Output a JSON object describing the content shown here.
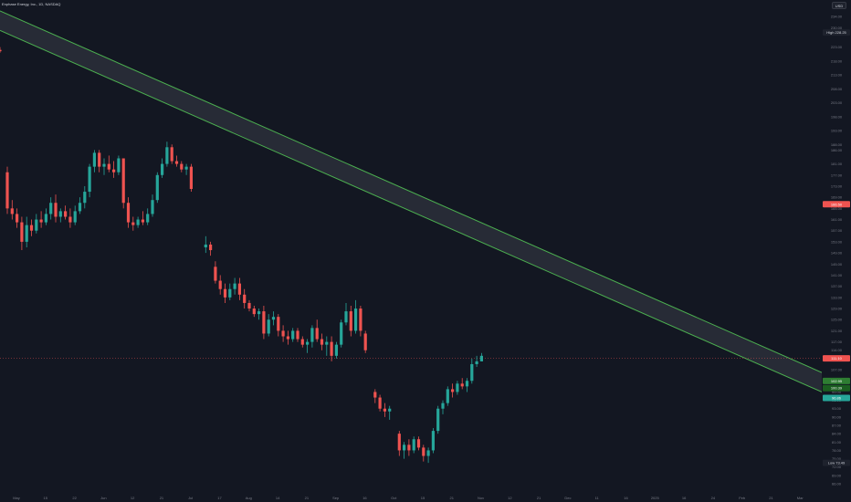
{
  "header": {
    "symbol_title": "Enphase Energy, Inc., 1D, NASDAQ",
    "currency_label": "USD"
  },
  "colors": {
    "background": "#131722",
    "up_candle": "#26a69a",
    "down_candle": "#ef5350",
    "channel_line": "#4caf50",
    "channel_fill": "#2a2e39",
    "price_line": "#ef5350",
    "axis_text": "#787b86"
  },
  "price_axis": {
    "ticks": [
      "234.00",
      "230.00",
      "223.00",
      "218.00",
      "213.00",
      "208.00",
      "203.00",
      "198.00",
      "193.00",
      "188.00",
      "186.00",
      "181.00",
      "177.00",
      "173.00",
      "169.00",
      "165.00",
      "161.00",
      "157.00",
      "153.00",
      "149.00",
      "145.00",
      "141.00",
      "137.00",
      "133.00",
      "129.00",
      "125.00",
      "121.00",
      "117.00",
      "114.00",
      "111.00",
      "107.00",
      "103.00",
      "99.00",
      "96.00",
      "93.00",
      "90.00",
      "87.00",
      "84.00",
      "81.00",
      "78.00",
      "75.00",
      "72.00",
      "69.00",
      "66.00"
    ],
    "high_label": "High",
    "high_value": "228.25",
    "low_label": "Low",
    "low_value": "73.49",
    "current_price": "111.10",
    "channel_top_value": "102.95",
    "channel_bottom_value": "100.39",
    "marker_value": "166.50",
    "marker2_value": "96.86"
  },
  "time_axis": {
    "labels": [
      "May",
      "15",
      "22",
      "Jun",
      "12",
      "21",
      "Jul",
      "17",
      "Aug",
      "14",
      "21",
      "Sep",
      "16",
      "Oct",
      "15",
      "21",
      "Nov",
      "12",
      "21",
      "Dec",
      "11",
      "16",
      "2025",
      "16",
      "24",
      "Feb",
      "21",
      "Mar"
    ]
  },
  "chart_data": {
    "type": "candlestick",
    "title": "Enphase Energy, Inc., 1D, NASDAQ",
    "ylim": [
      66,
      236
    ],
    "x_axis_labels": [
      "May",
      "15",
      "22",
      "Jun",
      "12",
      "21",
      "Jul",
      "17",
      "Aug",
      "14",
      "21",
      "Sep",
      "16",
      "Oct",
      "15",
      "21",
      "Nov",
      "12",
      "21",
      "Dec",
      "11",
      "16",
      "2025",
      "16",
      "24",
      "Feb",
      "21",
      "Mar"
    ],
    "channel": {
      "upper_line": {
        "start": 236,
        "end": 106
      },
      "lower_line": {
        "start": 229,
        "end": 99
      }
    },
    "last_price": 111.1,
    "high": 228.25,
    "low": 73.49,
    "candles": [
      {
        "o": 222,
        "h": 223,
        "l": 221,
        "c": 221.5
      },
      {
        "o": 178,
        "h": 180,
        "l": 163,
        "c": 165
      },
      {
        "o": 165,
        "h": 168,
        "l": 161,
        "c": 163
      },
      {
        "o": 163,
        "h": 165,
        "l": 158,
        "c": 160
      },
      {
        "o": 160,
        "h": 162,
        "l": 150,
        "c": 153
      },
      {
        "o": 153,
        "h": 162,
        "l": 151,
        "c": 159
      },
      {
        "o": 159,
        "h": 161,
        "l": 155,
        "c": 157
      },
      {
        "o": 157,
        "h": 163,
        "l": 156,
        "c": 161
      },
      {
        "o": 161,
        "h": 164,
        "l": 158,
        "c": 160
      },
      {
        "o": 160,
        "h": 165,
        "l": 159,
        "c": 163
      },
      {
        "o": 163,
        "h": 169,
        "l": 161,
        "c": 167
      },
      {
        "o": 167,
        "h": 170,
        "l": 160,
        "c": 162
      },
      {
        "o": 162,
        "h": 165,
        "l": 160,
        "c": 164
      },
      {
        "o": 164,
        "h": 166,
        "l": 161,
        "c": 162
      },
      {
        "o": 162,
        "h": 165,
        "l": 158,
        "c": 160
      },
      {
        "o": 160,
        "h": 166,
        "l": 159,
        "c": 164
      },
      {
        "o": 164,
        "h": 169,
        "l": 163,
        "c": 167
      },
      {
        "o": 167,
        "h": 173,
        "l": 165,
        "c": 171
      },
      {
        "o": 171,
        "h": 181,
        "l": 169,
        "c": 180
      },
      {
        "o": 180,
        "h": 186,
        "l": 178,
        "c": 185
      },
      {
        "o": 185,
        "h": 186,
        "l": 178,
        "c": 180
      },
      {
        "o": 180,
        "h": 183,
        "l": 177,
        "c": 181
      },
      {
        "o": 181,
        "h": 184,
        "l": 178,
        "c": 179
      },
      {
        "o": 179,
        "h": 182,
        "l": 176,
        "c": 178
      },
      {
        "o": 178,
        "h": 184,
        "l": 177,
        "c": 183
      },
      {
        "o": 183,
        "h": 183,
        "l": 165,
        "c": 167
      },
      {
        "o": 167,
        "h": 169,
        "l": 158,
        "c": 160
      },
      {
        "o": 160,
        "h": 162,
        "l": 157,
        "c": 159
      },
      {
        "o": 159,
        "h": 162,
        "l": 158,
        "c": 161
      },
      {
        "o": 161,
        "h": 164,
        "l": 159,
        "c": 160
      },
      {
        "o": 160,
        "h": 165,
        "l": 159,
        "c": 163
      },
      {
        "o": 163,
        "h": 170,
        "l": 162,
        "c": 168
      },
      {
        "o": 168,
        "h": 178,
        "l": 167,
        "c": 177
      },
      {
        "o": 177,
        "h": 183,
        "l": 176,
        "c": 181
      },
      {
        "o": 181,
        "h": 189,
        "l": 180,
        "c": 187
      },
      {
        "o": 187,
        "h": 188,
        "l": 181,
        "c": 182
      },
      {
        "o": 182,
        "h": 184,
        "l": 180,
        "c": 181
      },
      {
        "o": 181,
        "h": 182,
        "l": 178,
        "c": 179
      },
      {
        "o": 179,
        "h": 181,
        "l": 177,
        "c": 180
      },
      {
        "o": 180,
        "h": 181,
        "l": 171,
        "c": 172
      },
      {
        "o": 151,
        "h": 155,
        "l": 149,
        "c": 152
      },
      {
        "o": 152,
        "h": 153,
        "l": 148,
        "c": 150
      },
      {
        "o": 144,
        "h": 146,
        "l": 138,
        "c": 139
      },
      {
        "o": 139,
        "h": 141,
        "l": 134,
        "c": 136
      },
      {
        "o": 136,
        "h": 138,
        "l": 131,
        "c": 133
      },
      {
        "o": 133,
        "h": 138,
        "l": 132,
        "c": 136
      },
      {
        "o": 136,
        "h": 140,
        "l": 134,
        "c": 138
      },
      {
        "o": 138,
        "h": 140,
        "l": 132,
        "c": 134
      },
      {
        "o": 134,
        "h": 136,
        "l": 129,
        "c": 131
      },
      {
        "o": 131,
        "h": 132,
        "l": 128,
        "c": 129
      },
      {
        "o": 129,
        "h": 130,
        "l": 126,
        "c": 127
      },
      {
        "o": 127,
        "h": 129,
        "l": 125,
        "c": 128
      },
      {
        "o": 128,
        "h": 130,
        "l": 118,
        "c": 120
      },
      {
        "o": 120,
        "h": 127,
        "l": 119,
        "c": 125
      },
      {
        "o": 125,
        "h": 128,
        "l": 123,
        "c": 126
      },
      {
        "o": 126,
        "h": 127,
        "l": 119,
        "c": 121
      },
      {
        "o": 121,
        "h": 123,
        "l": 117,
        "c": 119
      },
      {
        "o": 119,
        "h": 121,
        "l": 116,
        "c": 118
      },
      {
        "o": 118,
        "h": 122,
        "l": 117,
        "c": 121
      },
      {
        "o": 121,
        "h": 122,
        "l": 117,
        "c": 118
      },
      {
        "o": 118,
        "h": 119,
        "l": 115,
        "c": 116
      },
      {
        "o": 116,
        "h": 118,
        "l": 113,
        "c": 117
      },
      {
        "o": 117,
        "h": 123,
        "l": 115,
        "c": 122
      },
      {
        "o": 122,
        "h": 125,
        "l": 117,
        "c": 118
      },
      {
        "o": 118,
        "h": 120,
        "l": 114,
        "c": 116
      },
      {
        "o": 116,
        "h": 119,
        "l": 112,
        "c": 117
      },
      {
        "o": 117,
        "h": 119,
        "l": 110,
        "c": 112
      },
      {
        "o": 112,
        "h": 117,
        "l": 111,
        "c": 116
      },
      {
        "o": 116,
        "h": 125,
        "l": 115,
        "c": 124
      },
      {
        "o": 124,
        "h": 131,
        "l": 123,
        "c": 128
      },
      {
        "o": 128,
        "h": 130,
        "l": 119,
        "c": 121
      },
      {
        "o": 121,
        "h": 132,
        "l": 120,
        "c": 129
      },
      {
        "o": 129,
        "h": 130,
        "l": 119,
        "c": 121
      },
      {
        "o": 120,
        "h": 121,
        "l": 113,
        "c": 114
      },
      {
        "o": 99,
        "h": 100,
        "l": 95,
        "c": 97
      },
      {
        "o": 97,
        "h": 98,
        "l": 92,
        "c": 93
      },
      {
        "o": 93,
        "h": 95,
        "l": 90,
        "c": 92
      },
      {
        "o": 92,
        "h": 94,
        "l": 89,
        "c": 93
      },
      {
        "o": 84,
        "h": 85,
        "l": 76,
        "c": 78
      },
      {
        "o": 78,
        "h": 81,
        "l": 75,
        "c": 80
      },
      {
        "o": 80,
        "h": 82,
        "l": 76,
        "c": 78
      },
      {
        "o": 78,
        "h": 83,
        "l": 77,
        "c": 82
      },
      {
        "o": 82,
        "h": 83,
        "l": 78,
        "c": 79
      },
      {
        "o": 79,
        "h": 80,
        "l": 74,
        "c": 76
      },
      {
        "o": 76,
        "h": 79,
        "l": 73.5,
        "c": 78
      },
      {
        "o": 78,
        "h": 86,
        "l": 77,
        "c": 85
      },
      {
        "o": 85,
        "h": 94,
        "l": 84,
        "c": 93
      },
      {
        "o": 93,
        "h": 96,
        "l": 91,
        "c": 95
      },
      {
        "o": 95,
        "h": 101,
        "l": 94,
        "c": 100
      },
      {
        "o": 100,
        "h": 102,
        "l": 97,
        "c": 99
      },
      {
        "o": 99,
        "h": 103,
        "l": 98,
        "c": 102
      },
      {
        "o": 102,
        "h": 104,
        "l": 100,
        "c": 101
      },
      {
        "o": 101,
        "h": 104,
        "l": 99,
        "c": 103
      },
      {
        "o": 103,
        "h": 111,
        "l": 102,
        "c": 109
      },
      {
        "o": 109,
        "h": 112,
        "l": 108,
        "c": 110
      },
      {
        "o": 110,
        "h": 113,
        "l": 110,
        "c": 112
      }
    ]
  }
}
